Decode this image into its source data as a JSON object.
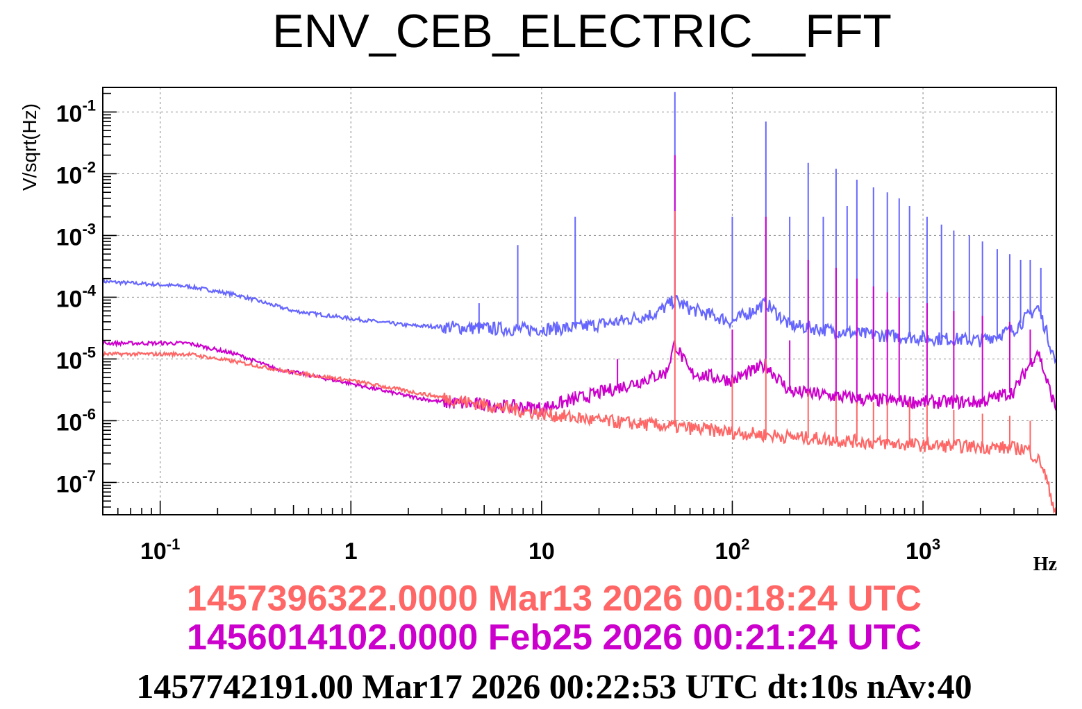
{
  "chart_data": {
    "type": "line",
    "title": "ENV_CEB_ELECTRIC__FFT",
    "xlabel": "Hz",
    "ylabel": "V/sqrt(Hz)",
    "xscale": "log",
    "yscale": "log",
    "xlim": [
      0.05,
      5000
    ],
    "ylim": [
      3e-08,
      0.25
    ],
    "grid": true,
    "x_ticks": [
      {
        "value": 0.1,
        "base": "10",
        "exp": "-1"
      },
      {
        "value": 1,
        "base": "1",
        "exp": ""
      },
      {
        "value": 10,
        "base": "10",
        "exp": ""
      },
      {
        "value": 100,
        "base": "10",
        "exp": "2"
      },
      {
        "value": 1000,
        "base": "10",
        "exp": "3"
      }
    ],
    "y_ticks": [
      {
        "value": 0.1,
        "base": "10",
        "exp": "-1"
      },
      {
        "value": 0.01,
        "base": "10",
        "exp": "-2"
      },
      {
        "value": 0.001,
        "base": "10",
        "exp": "-3"
      },
      {
        "value": 0.0001,
        "base": "10",
        "exp": "-4"
      },
      {
        "value": 1e-05,
        "base": "10",
        "exp": "-5"
      },
      {
        "value": 1e-06,
        "base": "10",
        "exp": "-6"
      },
      {
        "value": 1e-07,
        "base": "10",
        "exp": "-7"
      }
    ],
    "series": [
      {
        "name": "1457742191.00 Mar17 2026 00:22:53 UTC",
        "color": "#6666ff",
        "baseline": [
          [
            0.05,
            0.00018
          ],
          [
            0.14,
            0.00015
          ],
          [
            0.25,
            0.00011
          ],
          [
            0.5,
            6e-05
          ],
          [
            1,
            4.5e-05
          ],
          [
            2,
            3.5e-05
          ],
          [
            4,
            3.2e-05
          ],
          [
            8,
            3e-05
          ],
          [
            15,
            3.2e-05
          ],
          [
            25,
            4e-05
          ],
          [
            40,
            5.5e-05
          ],
          [
            50,
            9e-05
          ],
          [
            60,
            6.5e-05
          ],
          [
            100,
            4e-05
          ],
          [
            150,
            8e-05
          ],
          [
            200,
            3.5e-05
          ],
          [
            500,
            2.5e-05
          ],
          [
            1000,
            2.2e-05
          ],
          [
            2000,
            2e-05
          ],
          [
            3000,
            3e-05
          ],
          [
            4000,
            7e-05
          ],
          [
            4400,
            3e-05
          ],
          [
            5000,
            8e-06
          ]
        ],
        "peaks": [
          [
            4.7,
            8e-05
          ],
          [
            7.5,
            0.0007
          ],
          [
            15,
            0.002
          ],
          [
            50,
            0.21
          ],
          [
            100,
            0.002
          ],
          [
            150,
            0.07
          ],
          [
            200,
            0.002
          ],
          [
            250,
            0.015
          ],
          [
            300,
            0.002
          ],
          [
            350,
            0.012
          ],
          [
            400,
            0.003
          ],
          [
            450,
            0.008
          ],
          [
            550,
            0.006
          ],
          [
            650,
            0.005
          ],
          [
            750,
            0.004
          ],
          [
            850,
            0.003
          ],
          [
            1050,
            0.002
          ],
          [
            1250,
            0.0015
          ],
          [
            1450,
            0.0012
          ],
          [
            1750,
            0.001
          ],
          [
            2050,
            0.0008
          ],
          [
            2450,
            0.0006
          ],
          [
            2850,
            0.0005
          ],
          [
            3250,
            0.0004
          ],
          [
            3650,
            0.0004
          ],
          [
            4150,
            0.0003
          ]
        ]
      },
      {
        "name": "1456014102.0000 Feb25 2026 00:21:24 UTC",
        "color": "#cc00cc",
        "baseline": [
          [
            0.05,
            1.8e-05
          ],
          [
            0.14,
            1.8e-05
          ],
          [
            0.25,
            1.2e-05
          ],
          [
            0.4,
            7e-06
          ],
          [
            1,
            4e-06
          ],
          [
            2,
            2.5e-06
          ],
          [
            3,
            2e-06
          ],
          [
            5,
            1.8e-06
          ],
          [
            10,
            1.6e-06
          ],
          [
            15,
            2.2e-06
          ],
          [
            30,
            4e-06
          ],
          [
            45,
            6e-06
          ],
          [
            50,
            1.8e-05
          ],
          [
            60,
            6e-06
          ],
          [
            100,
            4.5e-06
          ],
          [
            150,
            8e-06
          ],
          [
            200,
            3e-06
          ],
          [
            500,
            2.2e-06
          ],
          [
            1000,
            2e-06
          ],
          [
            2000,
            2e-06
          ],
          [
            3000,
            3e-06
          ],
          [
            4000,
            1.4e-05
          ],
          [
            4400,
            5e-06
          ],
          [
            5000,
            1.5e-06
          ]
        ],
        "peaks": [
          [
            15,
            3e-06
          ],
          [
            25,
            1e-05
          ],
          [
            50,
            0.02
          ],
          [
            100,
            3e-05
          ],
          [
            150,
            0.002
          ],
          [
            200,
            2e-05
          ],
          [
            250,
            0.0004
          ],
          [
            350,
            0.0003
          ],
          [
            450,
            0.0002
          ],
          [
            550,
            0.00015
          ],
          [
            650,
            0.00012
          ],
          [
            750,
            0.0001
          ],
          [
            1050,
            8e-05
          ],
          [
            1450,
            6e-05
          ],
          [
            2050,
            5e-05
          ],
          [
            2850,
            4e-05
          ],
          [
            3650,
            3e-05
          ]
        ]
      },
      {
        "name": "1457396322.0000 Mar13 2026 00:18:24 UTC",
        "color": "#ff6666",
        "baseline": [
          [
            0.05,
            1.2e-05
          ],
          [
            0.14,
            1.2e-05
          ],
          [
            0.25,
            9e-06
          ],
          [
            0.5,
            6e-06
          ],
          [
            1,
            4.5e-06
          ],
          [
            2,
            3e-06
          ],
          [
            5,
            1.8e-06
          ],
          [
            10,
            1.3e-06
          ],
          [
            20,
            1e-06
          ],
          [
            50,
            8e-07
          ],
          [
            100,
            6.5e-07
          ],
          [
            200,
            5.5e-07
          ],
          [
            500,
            4.5e-07
          ],
          [
            1000,
            4e-07
          ],
          [
            2000,
            3.8e-07
          ],
          [
            3500,
            3.5e-07
          ],
          [
            4200,
            2e-07
          ],
          [
            5000,
            3e-08
          ]
        ],
        "peaks": [
          [
            50,
            0.0025
          ],
          [
            100,
            5e-06
          ],
          [
            150,
            1e-05
          ],
          [
            250,
            3e-06
          ],
          [
            350,
            2.5e-06
          ],
          [
            450,
            2e-06
          ],
          [
            550,
            2e-06
          ],
          [
            650,
            2e-06
          ],
          [
            850,
            2e-06
          ],
          [
            1050,
            1.8e-06
          ],
          [
            1450,
            1.5e-06
          ],
          [
            2050,
            1.3e-06
          ],
          [
            2850,
            1.2e-06
          ],
          [
            3650,
            1e-06
          ]
        ]
      }
    ]
  },
  "legend": [
    {
      "text": "1457396322.0000 Mar13 2026 00:18:24 UTC",
      "color": "#ff6666"
    },
    {
      "text": "1456014102.0000 Feb25 2026 00:21:24 UTC",
      "color": "#cc00cc"
    }
  ],
  "footer": {
    "text": "1457742191.00 Mar17 2026 00:22:53 UTC dt:10s nAv:40"
  }
}
